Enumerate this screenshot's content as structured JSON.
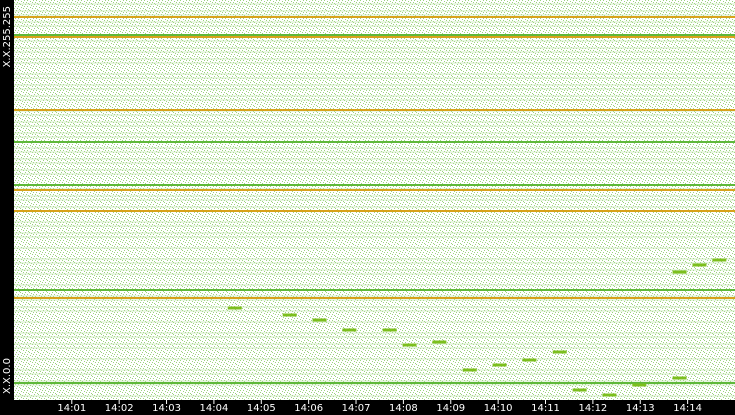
{
  "chart_data": {
    "type": "scatter",
    "xlim": [
      -0.22,
      15
    ],
    "ylim": [
      0,
      65535
    ],
    "xticks": [
      {
        "value": 1,
        "label": "14:01"
      },
      {
        "value": 2,
        "label": "14:02"
      },
      {
        "value": 3,
        "label": "14:03"
      },
      {
        "value": 4,
        "label": "14:04"
      },
      {
        "value": 5,
        "label": "14:05"
      },
      {
        "value": 6,
        "label": "14:06"
      },
      {
        "value": 7,
        "label": "14:07"
      },
      {
        "value": 8,
        "label": "14:08"
      },
      {
        "value": 9,
        "label": "14:09"
      },
      {
        "value": 10,
        "label": "14:10"
      },
      {
        "value": 11,
        "label": "14:11"
      },
      {
        "value": 12,
        "label": "14:12"
      },
      {
        "value": 13,
        "label": "14:13"
      },
      {
        "value": 14,
        "label": "14:14"
      }
    ],
    "yticks": [
      {
        "value": 0,
        "label": "X.X.0.0"
      },
      {
        "value": 65535,
        "label": "X.X.255.255"
      }
    ],
    "bands": [
      {
        "y": 62751,
        "color": "#d8a21c"
      },
      {
        "y": 59474,
        "color": "#d8a21c"
      },
      {
        "y": 47514,
        "color": "#d8a21c"
      },
      {
        "y": 34406,
        "color": "#d8a21c"
      },
      {
        "y": 30966,
        "color": "#d8a21c"
      },
      {
        "y": 16712,
        "color": "#d8a21c"
      },
      {
        "y": 59802,
        "color": "#5fb83a"
      },
      {
        "y": 42271,
        "color": "#5fb83a"
      },
      {
        "y": 35226,
        "color": "#5fb83a"
      },
      {
        "y": 18022,
        "color": "#5fb83a"
      },
      {
        "y": 2785,
        "color": "#5fb83a"
      }
    ],
    "series": [
      {
        "color": "#7cbf1e",
        "x": [
          4.44,
          5.6,
          6.23,
          6.86,
          7.71,
          8.13,
          8.76,
          9.4,
          10.03,
          10.66,
          11.3,
          11.72,
          12.35,
          12.98,
          13.83,
          13.83,
          14.25,
          14.67
        ],
        "values": [
          15073,
          13926,
          13107,
          11469,
          11469,
          9011,
          9503,
          4915,
          5734,
          6554,
          7864,
          1638,
          819,
          2458,
          3604,
          20972,
          22118,
          22938
        ]
      }
    ]
  }
}
